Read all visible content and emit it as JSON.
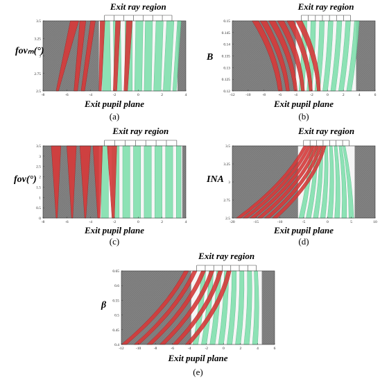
{
  "figure": {
    "region_label": "Exit ray region",
    "xlabel": "Exit pupil plane"
  },
  "colors": {
    "background": "#7b7b7b",
    "red": "#d63a3a",
    "green": "#7fe0ad",
    "white": "#ffffff"
  },
  "chart_data": [
    {
      "type": "area",
      "panel_label": "(a)",
      "ylabel": "fovₘ(°)",
      "xlim": [
        -8,
        4
      ],
      "ylim": [
        2.5,
        3.5
      ],
      "xticks": [
        "-8",
        "-6",
        "-4",
        "-2",
        "0",
        "2",
        "4"
      ],
      "yticks": [
        "2.5",
        "2.75",
        "3",
        "3.25",
        "3.5"
      ],
      "red_bands": [
        {
          "x_bottom": [
            -6.9,
            -6.7
          ],
          "x_top": [
            -5.7,
            -5.0
          ]
        },
        {
          "x_bottom": [
            -5.4,
            -5.1
          ],
          "x_top": [
            -4.9,
            -4.4
          ]
        },
        {
          "x_bottom": [
            -4.8,
            -4.5
          ],
          "x_top": [
            -4.0,
            -3.6
          ]
        },
        {
          "x_bottom": [
            -3.3,
            -3.1
          ],
          "x_top": [
            -3.2,
            -2.8
          ]
        },
        {
          "x_bottom": [
            -2.1,
            -1.8
          ],
          "x_top": [
            -1.9,
            -1.5
          ]
        },
        {
          "x_bottom": [
            -1.2,
            -0.9
          ],
          "x_top": [
            -1.0,
            -0.5
          ]
        }
      ],
      "green_bands": [
        {
          "x_bottom": [
            -3.0,
            -2.3
          ],
          "x_top": [
            -3.1,
            -2.4
          ]
        },
        {
          "x_bottom": [
            -2.0,
            -1.4
          ],
          "x_top": [
            -2.1,
            -1.5
          ]
        },
        {
          "x_bottom": [
            -1.1,
            -0.5
          ],
          "x_top": [
            -1.1,
            -0.5
          ]
        },
        {
          "x_bottom": [
            -0.3,
            0.3
          ],
          "x_top": [
            -0.2,
            0.4
          ]
        },
        {
          "x_bottom": [
            0.5,
            1.1
          ],
          "x_top": [
            0.6,
            1.2
          ]
        },
        {
          "x_bottom": [
            1.3,
            1.9
          ],
          "x_top": [
            1.5,
            2.1
          ]
        },
        {
          "x_bottom": [
            2.1,
            2.7
          ],
          "x_top": [
            2.4,
            3.0
          ]
        },
        {
          "x_bottom": [
            2.9,
            3.2
          ],
          "x_top": [
            3.3,
            3.6
          ]
        }
      ],
      "white_x": [
        -3.3,
        3.3
      ]
    },
    {
      "type": "area",
      "panel_label": "(b)",
      "ylabel": "B",
      "xlim": [
        -12,
        6
      ],
      "ylim": [
        0.12,
        0.15
      ],
      "xticks": [
        "-12",
        "-10",
        "-8",
        "-6",
        "-4",
        "-2",
        "0",
        "2",
        "4",
        "6"
      ],
      "yticks": [
        "0.12",
        "0.125",
        "0.13",
        "0.135",
        "0.14",
        "0.145",
        "0.15"
      ],
      "red_bands": [
        {
          "x_bottom": [
            -6.2,
            -5.7
          ],
          "x_top": [
            -9.5,
            -8.7
          ]
        },
        {
          "x_bottom": [
            -5.2,
            -4.8
          ],
          "x_top": [
            -8.5,
            -7.7
          ]
        },
        {
          "x_bottom": [
            -4.2,
            -3.8
          ],
          "x_top": [
            -7.4,
            -6.6
          ]
        },
        {
          "x_bottom": [
            -3.3,
            -2.9
          ],
          "x_top": [
            -6.3,
            -5.5
          ]
        },
        {
          "x_bottom": [
            -2.3,
            -1.9
          ],
          "x_top": [
            -5.1,
            -4.3
          ]
        },
        {
          "x_bottom": [
            -1.3,
            -0.9
          ],
          "x_top": [
            -4.0,
            -3.2
          ]
        }
      ],
      "green_bands": [
        {
          "x_bottom": [
            -3.6,
            -3.0
          ],
          "x_top": [
            -3.2,
            -2.6
          ]
        },
        {
          "x_bottom": [
            -2.6,
            -2.0
          ],
          "x_top": [
            -2.1,
            -1.5
          ]
        },
        {
          "x_bottom": [
            -1.6,
            -1.0
          ],
          "x_top": [
            -1.0,
            -0.4
          ]
        },
        {
          "x_bottom": [
            -0.6,
            0.0
          ],
          "x_top": [
            0.1,
            0.7
          ]
        },
        {
          "x_bottom": [
            0.4,
            1.0
          ],
          "x_top": [
            1.2,
            1.8
          ]
        },
        {
          "x_bottom": [
            1.4,
            2.0
          ],
          "x_top": [
            2.3,
            2.9
          ]
        },
        {
          "x_bottom": [
            2.4,
            3.0
          ],
          "x_top": [
            3.4,
            4.0
          ]
        }
      ],
      "white_x": [
        -4.0,
        3.6
      ]
    },
    {
      "type": "area",
      "panel_label": "(c)",
      "ylabel": "fov(°)",
      "xlim": [
        -8,
        4
      ],
      "ylim": [
        0,
        3.5
      ],
      "xticks": [
        "-8",
        "-6",
        "-4",
        "-2",
        "0",
        "2",
        "4"
      ],
      "yticks": [
        "0",
        "0.5",
        "1",
        "1.5",
        "2",
        "2.5",
        "3",
        "3.5"
      ],
      "red_bands": [
        {
          "x_bottom": [
            -6.9,
            -6.8
          ],
          "x_top": [
            -7.3,
            -6.5
          ]
        },
        {
          "x_bottom": [
            -5.6,
            -5.5
          ],
          "x_top": [
            -6.0,
            -5.2
          ]
        },
        {
          "x_bottom": [
            -4.5,
            -4.4
          ],
          "x_top": [
            -4.9,
            -4.0
          ]
        },
        {
          "x_bottom": [
            -3.4,
            -3.2
          ],
          "x_top": [
            -3.8,
            -3.0
          ]
        },
        {
          "x_bottom": [
            -2.2,
            -2.0
          ],
          "x_top": [
            -2.6,
            -1.8
          ]
        }
      ],
      "green_bands": [
        {
          "x_bottom": [
            -3.1,
            -2.5
          ],
          "x_top": [
            -3.1,
            -2.5
          ]
        },
        {
          "x_bottom": [
            -2.2,
            -1.6
          ],
          "x_top": [
            -2.2,
            -1.6
          ]
        },
        {
          "x_bottom": [
            -1.3,
            -0.7
          ],
          "x_top": [
            -1.3,
            -0.7
          ]
        },
        {
          "x_bottom": [
            -0.4,
            0.2
          ],
          "x_top": [
            -0.4,
            0.2
          ]
        },
        {
          "x_bottom": [
            0.5,
            1.1
          ],
          "x_top": [
            0.5,
            1.1
          ]
        },
        {
          "x_bottom": [
            1.4,
            2.0
          ],
          "x_top": [
            1.4,
            2.0
          ]
        },
        {
          "x_bottom": [
            2.3,
            2.9
          ],
          "x_top": [
            2.3,
            2.9
          ]
        },
        {
          "x_bottom": [
            3.2,
            3.6
          ],
          "x_top": [
            3.2,
            3.6
          ]
        }
      ],
      "white_x": [
        -3.3,
        3.7
      ]
    },
    {
      "type": "area",
      "panel_label": "(d)",
      "ylabel": "INA",
      "xlim": [
        -20,
        10
      ],
      "ylim": [
        2.5,
        3.5
      ],
      "xticks": [
        "-20",
        "-15",
        "-10",
        "-5",
        "0",
        "5",
        "10"
      ],
      "yticks": [
        "2.5",
        "2.75",
        "3",
        "3.25",
        "3.5"
      ],
      "red_bands": [
        {
          "x_bottom": [
            -19.2,
            -18.2
          ],
          "x_top": [
            -5.0,
            -4.3
          ]
        },
        {
          "x_bottom": [
            -17.8,
            -16.8
          ],
          "x_top": [
            -4.2,
            -3.5
          ]
        },
        {
          "x_bottom": [
            -16.3,
            -15.3
          ],
          "x_top": [
            -3.4,
            -2.7
          ]
        },
        {
          "x_bottom": [
            -14.8,
            -13.8
          ],
          "x_top": [
            -2.6,
            -1.9
          ]
        },
        {
          "x_bottom": [
            -13.2,
            -12.2
          ],
          "x_top": [
            -1.8,
            -1.1
          ]
        },
        {
          "x_bottom": [
            -11.6,
            -10.6
          ],
          "x_top": [
            -1.0,
            -0.3
          ]
        }
      ],
      "green_bands": [
        {
          "x_bottom": [
            -6.0,
            -5.0
          ],
          "x_top": [
            -3.6,
            -3.0
          ]
        },
        {
          "x_bottom": [
            -4.5,
            -3.5
          ],
          "x_top": [
            -2.6,
            -2.0
          ]
        },
        {
          "x_bottom": [
            -3.0,
            -2.0
          ],
          "x_top": [
            -1.6,
            -1.0
          ]
        },
        {
          "x_bottom": [
            -1.5,
            -0.5
          ],
          "x_top": [
            -0.6,
            0.0
          ]
        },
        {
          "x_bottom": [
            0.0,
            1.0
          ],
          "x_top": [
            0.4,
            1.0
          ]
        },
        {
          "x_bottom": [
            1.5,
            2.5
          ],
          "x_top": [
            1.4,
            2.0
          ]
        },
        {
          "x_bottom": [
            3.0,
            4.0
          ],
          "x_top": [
            2.4,
            3.0
          ]
        },
        {
          "x_bottom": [
            4.5,
            5.5
          ],
          "x_top": [
            3.2,
            3.7
          ]
        }
      ],
      "white_x": [
        -6.2,
        5.7
      ]
    },
    {
      "type": "area",
      "panel_label": "(e)",
      "ylabel": "β",
      "xlim": [
        -12,
        6
      ],
      "ylim": [
        0.4,
        0.65
      ],
      "xticks": [
        "-12",
        "-10",
        "-8",
        "-6",
        "-4",
        "-2",
        "0",
        "2",
        "4",
        "6"
      ],
      "yticks": [
        "0.4",
        "0.45",
        "0.5",
        "0.55",
        "0.6",
        "0.65"
      ],
      "red_bands": [
        {
          "x_bottom": [
            -12.0,
            -11.4
          ],
          "x_top": [
            -4.6,
            -4.1
          ]
        },
        {
          "x_bottom": [
            -10.5,
            -9.9
          ],
          "x_top": [
            -3.6,
            -3.1
          ]
        },
        {
          "x_bottom": [
            -9.0,
            -8.4
          ],
          "x_top": [
            -2.6,
            -2.1
          ]
        },
        {
          "x_bottom": [
            -7.5,
            -6.9
          ],
          "x_top": [
            -1.6,
            -1.1
          ]
        },
        {
          "x_bottom": [
            -6.0,
            -5.4
          ],
          "x_top": [
            -0.6,
            -0.1
          ]
        },
        {
          "x_bottom": [
            -4.5,
            -3.9
          ],
          "x_top": [
            0.4,
            0.9
          ]
        }
      ],
      "green_bands": [
        {
          "x_bottom": [
            -3.6,
            -3.0
          ],
          "x_top": [
            -2.6,
            -2.1
          ]
        },
        {
          "x_bottom": [
            -2.6,
            -2.0
          ],
          "x_top": [
            -1.7,
            -1.2
          ]
        },
        {
          "x_bottom": [
            -1.6,
            -1.0
          ],
          "x_top": [
            -0.8,
            -0.3
          ]
        },
        {
          "x_bottom": [
            -0.6,
            0.0
          ],
          "x_top": [
            0.1,
            0.6
          ]
        },
        {
          "x_bottom": [
            0.4,
            1.0
          ],
          "x_top": [
            1.0,
            1.5
          ]
        },
        {
          "x_bottom": [
            1.4,
            2.0
          ],
          "x_top": [
            1.9,
            2.4
          ]
        },
        {
          "x_bottom": [
            2.4,
            3.0
          ],
          "x_top": [
            2.8,
            3.3
          ]
        },
        {
          "x_bottom": [
            3.4,
            4.0
          ],
          "x_top": [
            3.6,
            4.0
          ]
        }
      ],
      "white_x": [
        -3.8,
        4.5
      ]
    }
  ]
}
